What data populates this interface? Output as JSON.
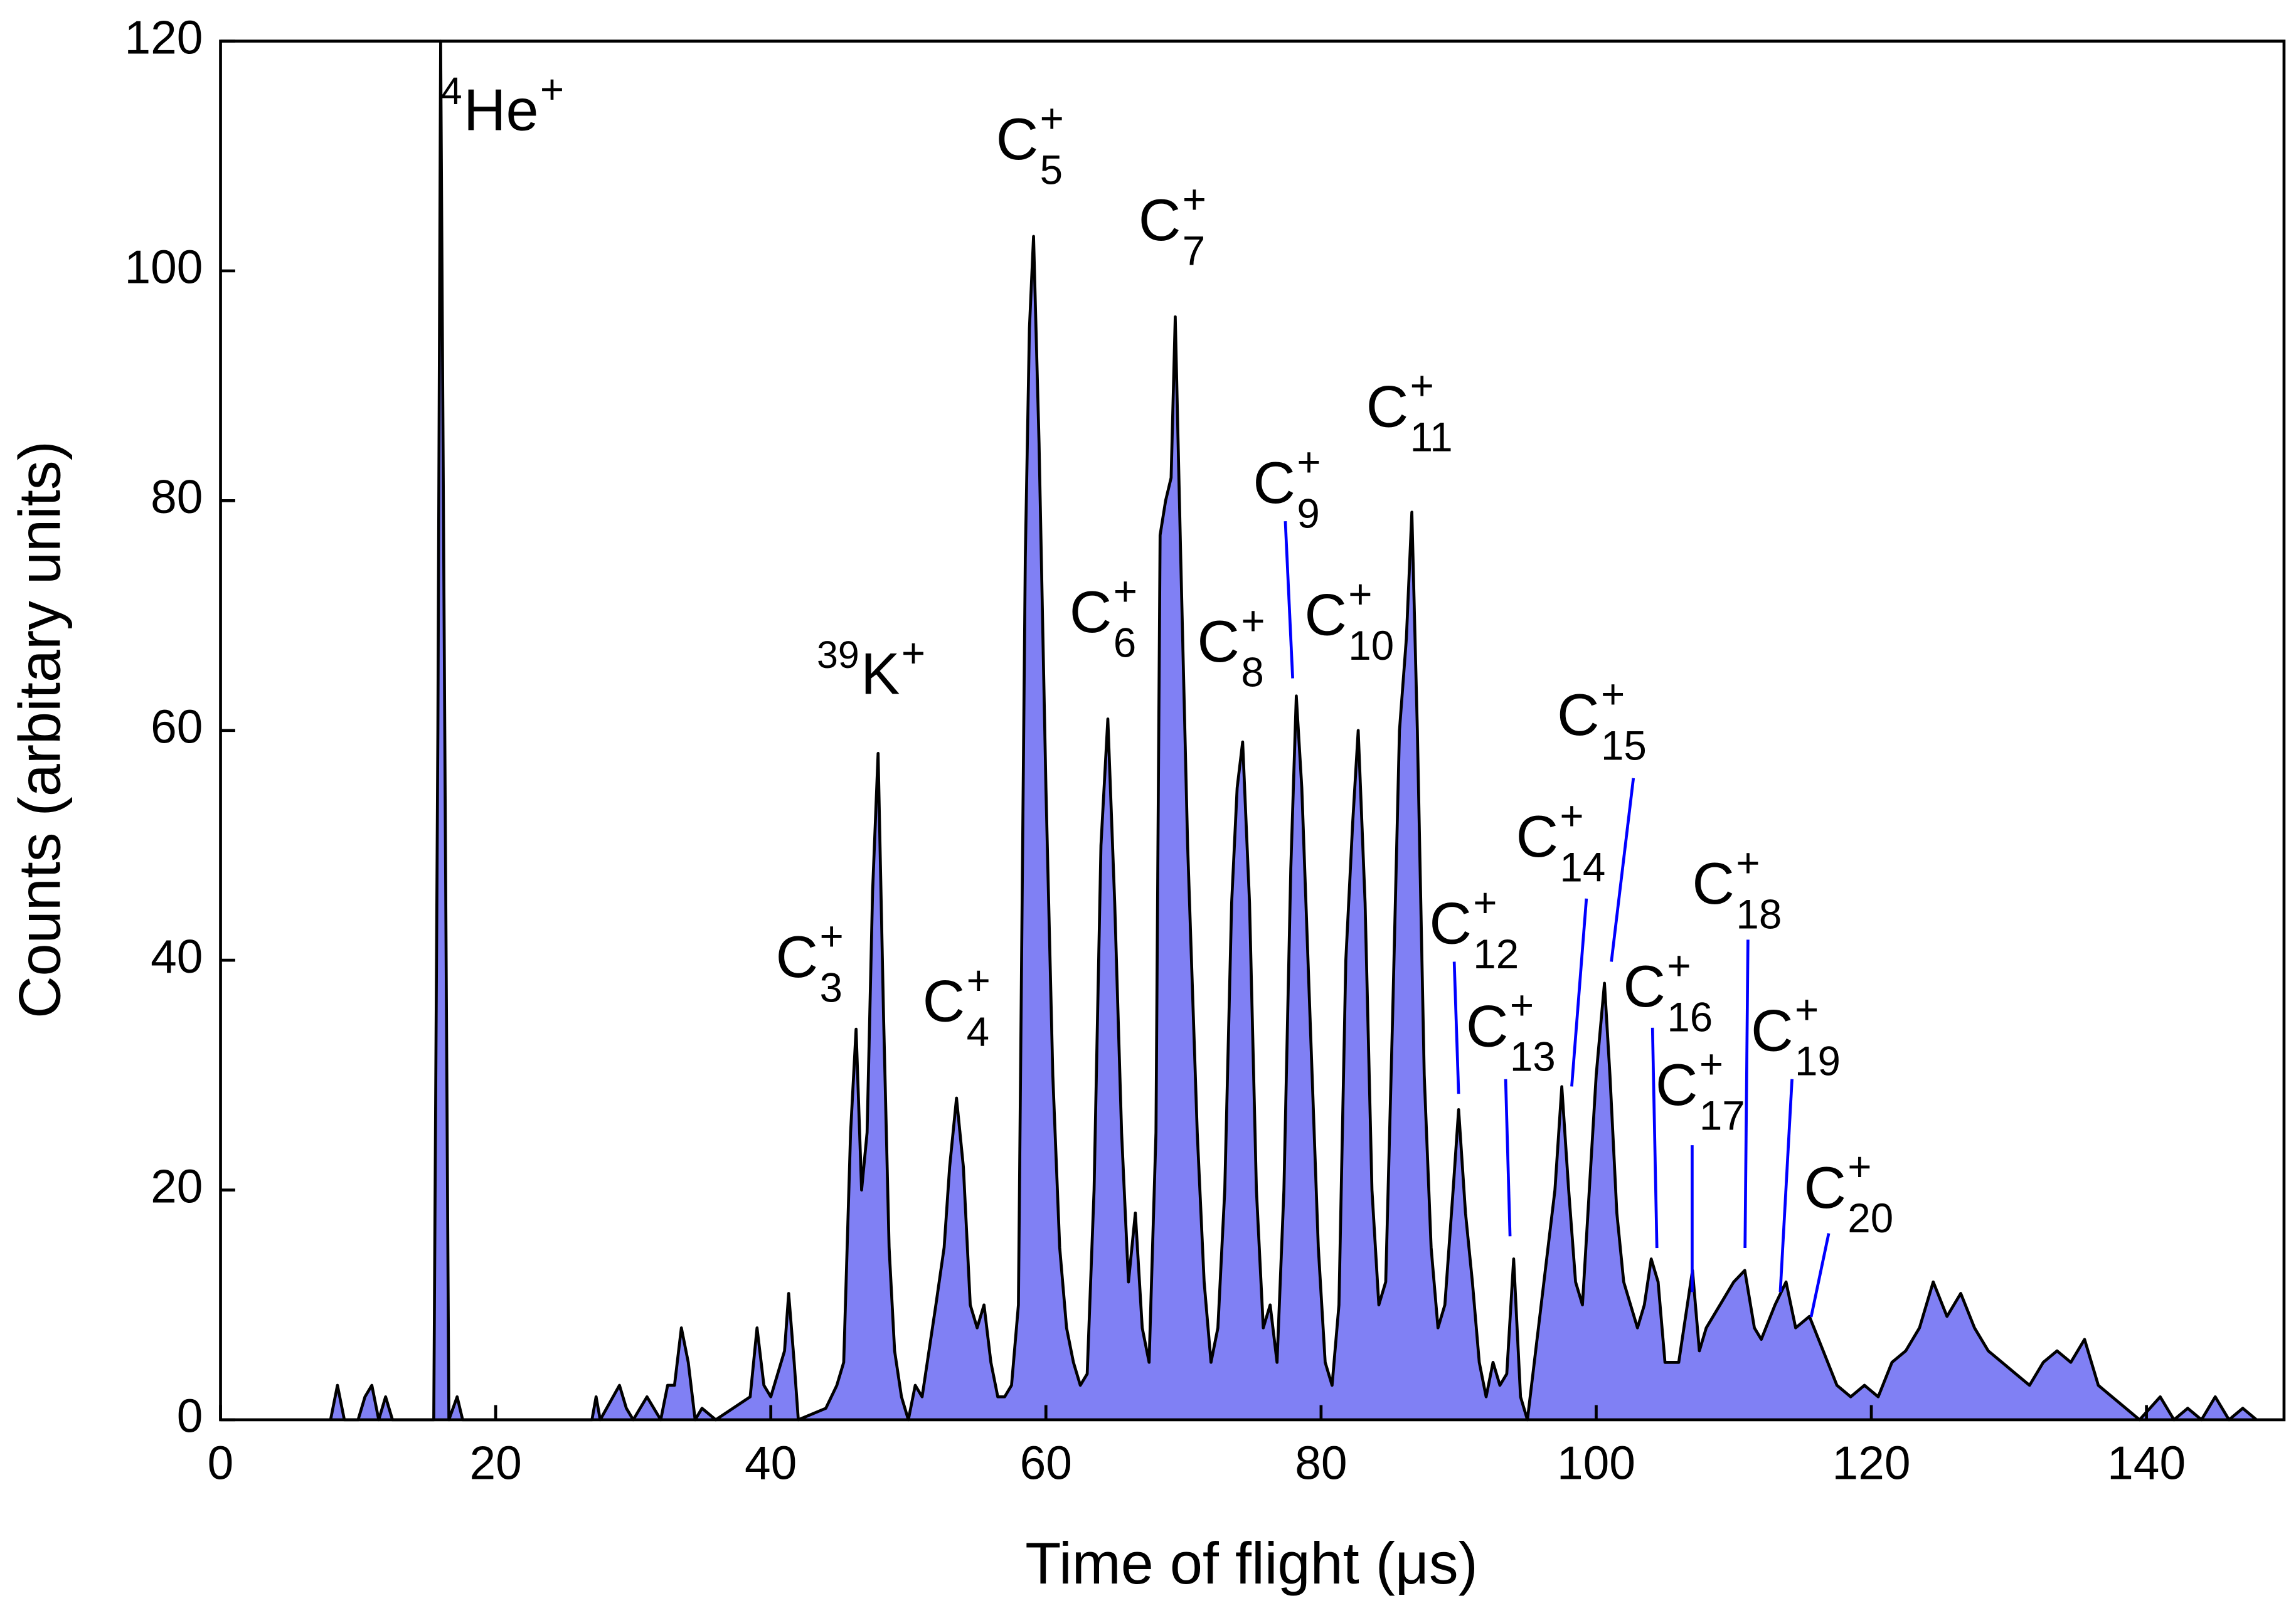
{
  "chart_data": {
    "type": "area",
    "x_label": "Time of flight (μs)",
    "y_label": "Counts (arbitary units)",
    "xlim": [
      0,
      150
    ],
    "xticks": [
      0,
      20,
      40,
      60,
      80,
      100,
      120,
      140
    ],
    "ylim": [
      0,
      120
    ],
    "yticks": [
      0,
      20,
      40,
      60,
      80,
      100,
      120
    ],
    "fill_color": "#8080f4",
    "line_color": "#000000",
    "leader_color": "#0000ff",
    "x": [
      8,
      8.5,
      9,
      10,
      10.5,
      11,
      11.5,
      12,
      12.5,
      15.5,
      15.8,
      16,
      16.3,
      16.6,
      17.2,
      17.6,
      27,
      27.3,
      27.6,
      29,
      29.5,
      30,
      31,
      32,
      32.5,
      33,
      33.5,
      34,
      34.5,
      35,
      36,
      38.5,
      39,
      39.5,
      40,
      41,
      41.3,
      41.7,
      42,
      44,
      44.8,
      45.3,
      45.8,
      46.2,
      46.6,
      47,
      47.4,
      47.8,
      48.2,
      48.6,
      49,
      49.5,
      50,
      50.5,
      51,
      52,
      52.6,
      53,
      53.5,
      54,
      54.5,
      55,
      55.5,
      56,
      56.5,
      57,
      57.5,
      58,
      58.5,
      58.8,
      59.1,
      59.5,
      60,
      60.5,
      61,
      61.5,
      62,
      62.5,
      63,
      63.5,
      64,
      64.5,
      65,
      65.5,
      66,
      66.5,
      67,
      67.5,
      68,
      68.3,
      68.7,
      69.1,
      69.4,
      69.8,
      70.3,
      71,
      71.5,
      72,
      72.5,
      73,
      73.5,
      73.9,
      74.3,
      74.8,
      75.3,
      75.8,
      76.3,
      76.8,
      77.3,
      77.8,
      78.2,
      78.6,
      79.2,
      79.8,
      80.3,
      80.8,
      81.3,
      81.8,
      82.3,
      82.7,
      83.2,
      83.7,
      84.2,
      84.7,
      85.2,
      85.7,
      86.2,
      86.6,
      87,
      87.5,
      88,
      88.5,
      89,
      89.6,
      90,
      90.5,
      91,
      91.5,
      92,
      92.5,
      93,
      93.5,
      94,
      94.5,
      95,
      95.5,
      96,
      96.5,
      97,
      97.5,
      98,
      98.5,
      99,
      99.5,
      100,
      100.6,
      101,
      101.5,
      102,
      102.5,
      103,
      103.5,
      104,
      104.5,
      105,
      106,
      107,
      107.5,
      108,
      109,
      110,
      110.8,
      111.5,
      112,
      113,
      113.8,
      114.5,
      115.5,
      116.5,
      117.5,
      118.5,
      119.5,
      120.5,
      121.5,
      122.5,
      123.5,
      124.5,
      125.5,
      126.5,
      127.5,
      128.5,
      129.5,
      130.5,
      131.5,
      132.5,
      133.5,
      134.5,
      135.5,
      136.5,
      137.5,
      138.5,
      139.5,
      141,
      142,
      143,
      144,
      145,
      146,
      147,
      148
    ],
    "values": [
      0,
      3,
      0,
      0,
      2,
      3,
      0,
      2,
      0,
      0,
      60,
      120,
      60,
      0,
      2,
      0,
      0,
      2,
      0,
      3,
      1,
      0,
      2,
      0,
      3,
      3,
      8,
      5,
      0,
      1,
      0,
      2,
      8,
      3,
      2,
      6,
      11,
      5,
      0,
      1,
      3,
      5,
      25,
      34,
      20,
      25,
      46,
      58,
      35,
      15,
      6,
      2,
      0,
      3,
      2,
      10,
      15,
      22,
      28,
      22,
      10,
      8,
      10,
      5,
      2,
      2,
      3,
      10,
      75,
      95,
      103,
      85,
      55,
      30,
      15,
      8,
      5,
      3,
      4,
      20,
      50,
      61,
      45,
      25,
      12,
      18,
      8,
      5,
      25,
      77,
      80,
      82,
      96,
      75,
      50,
      25,
      12,
      5,
      8,
      20,
      45,
      55,
      59,
      45,
      20,
      8,
      10,
      5,
      20,
      48,
      63,
      55,
      35,
      15,
      5,
      3,
      10,
      40,
      52,
      60,
      45,
      20,
      10,
      12,
      35,
      60,
      68,
      79,
      60,
      30,
      15,
      8,
      10,
      20,
      27,
      18,
      12,
      5,
      2,
      5,
      3,
      4,
      14,
      2,
      0,
      5,
      10,
      15,
      20,
      29,
      20,
      12,
      10,
      20,
      30,
      38,
      30,
      18,
      12,
      10,
      8,
      10,
      14,
      12,
      5,
      5,
      13,
      6,
      8,
      10,
      12,
      13,
      8,
      7,
      10,
      12,
      8,
      9,
      6,
      3,
      2,
      3,
      2,
      5,
      6,
      8,
      12,
      9,
      11,
      8,
      6,
      5,
      4,
      3,
      5,
      6,
      5,
      7,
      3,
      2,
      1,
      0,
      2,
      0,
      1,
      0,
      2,
      0,
      1,
      0
    ],
    "annotations": [
      {
        "pre": "4",
        "base": "He",
        "sup": "+"
      },
      {
        "pre": "39",
        "base": "K",
        "sup": "+"
      },
      {
        "base": "C",
        "sup": "+",
        "sub": "3"
      },
      {
        "base": "C",
        "sup": "+",
        "sub": "4"
      },
      {
        "base": "C",
        "sup": "+",
        "sub": "5"
      },
      {
        "base": "C",
        "sup": "+",
        "sub": "6"
      },
      {
        "base": "C",
        "sup": "+",
        "sub": "7"
      },
      {
        "base": "C",
        "sup": "+",
        "sub": "8"
      },
      {
        "base": "C",
        "sup": "+",
        "sub": "9"
      },
      {
        "base": "C",
        "sup": "+",
        "sub": "10"
      },
      {
        "base": "C",
        "sup": "+",
        "sub": "11"
      },
      {
        "base": "C",
        "sup": "+",
        "sub": "12"
      },
      {
        "base": "C",
        "sup": "+",
        "sub": "13"
      },
      {
        "base": "C",
        "sup": "+",
        "sub": "14"
      },
      {
        "base": "C",
        "sup": "+",
        "sub": "15"
      },
      {
        "base": "C",
        "sup": "+",
        "sub": "16"
      },
      {
        "base": "C",
        "sup": "+",
        "sub": "17"
      },
      {
        "base": "C",
        "sup": "+",
        "sub": "18"
      },
      {
        "base": "C",
        "sup": "+",
        "sub": "19"
      },
      {
        "base": "C",
        "sup": "+",
        "sub": "20"
      }
    ]
  }
}
